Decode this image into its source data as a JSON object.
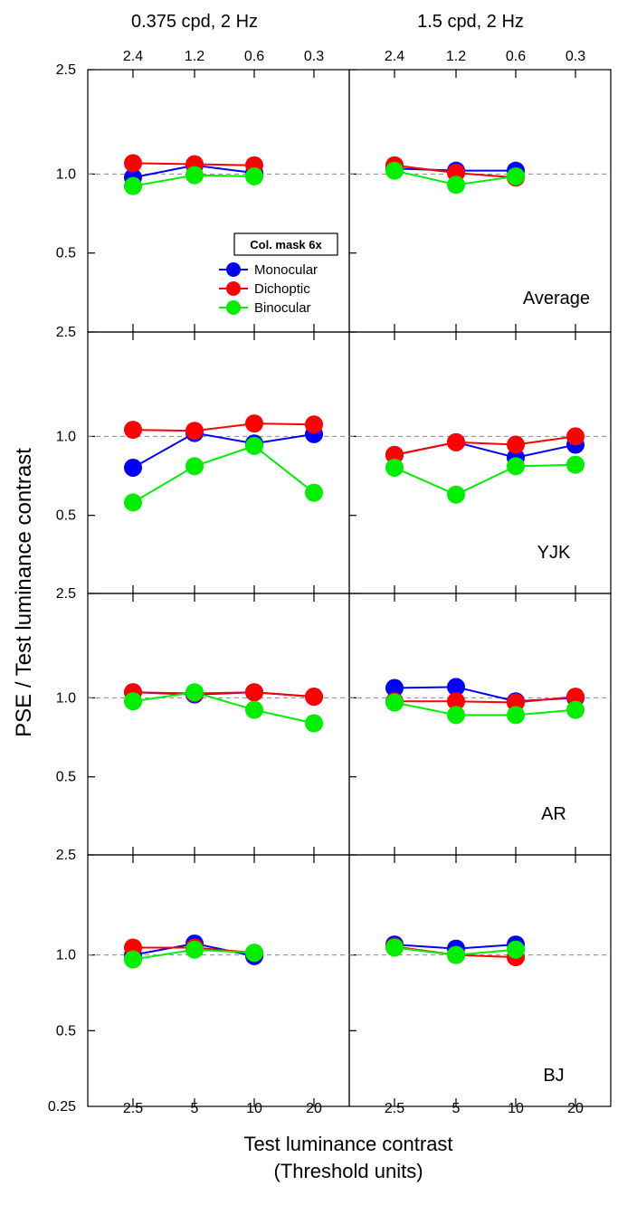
{
  "figure": {
    "column_titles": [
      "0.375 cpd, 2 Hz",
      "1.5 cpd, 2 Hz"
    ],
    "top_tick_labels": [
      "2.4",
      "1.2",
      "0.6",
      "0.3"
    ],
    "bottom_tick_labels": [
      "2.5",
      "5",
      "10",
      "20"
    ],
    "y_tick_labels": [
      "2.5",
      "1.0",
      "0.5",
      "0.25"
    ],
    "ylabel": "PSE / Test luminance contrast",
    "xlabel_line1": "Test luminance contrast",
    "xlabel_line2": "(Threshold units)",
    "legend_title": "Col. mask 6x",
    "row_labels": [
      "Average",
      "YJK",
      "AR",
      "BJ"
    ]
  },
  "colors": {
    "Monocular": "#0000ff",
    "Dichoptic": "#ff0000",
    "Binocular": "#00ee00",
    "reference": "#888888"
  },
  "chart_data": {
    "type": "line",
    "y_scale": "log",
    "ylim": [
      0.25,
      2.5
    ],
    "reference_line_y": 1.0,
    "x": [
      2.5,
      5,
      10,
      20
    ],
    "x_top": [
      2.4,
      1.2,
      0.6,
      0.3
    ],
    "legend": {
      "entries": [
        "Monocular",
        "Dichoptic",
        "Binocular"
      ],
      "placement": "center of top-left panel"
    },
    "panels": [
      {
        "row": "Average",
        "column": "0.375 cpd, 2 Hz",
        "series": [
          {
            "name": "Monocular",
            "values": [
              0.97,
              1.08,
              1.01,
              null
            ]
          },
          {
            "name": "Dichoptic",
            "values": [
              1.1,
              1.09,
              1.08,
              null
            ]
          },
          {
            "name": "Binocular",
            "values": [
              0.9,
              0.99,
              0.98,
              null
            ]
          }
        ]
      },
      {
        "row": "Average",
        "column": "1.5 cpd, 2 Hz",
        "series": [
          {
            "name": "Monocular",
            "values": [
              1.05,
              1.03,
              1.03,
              null
            ]
          },
          {
            "name": "Dichoptic",
            "values": [
              1.08,
              1.01,
              0.97,
              null
            ]
          },
          {
            "name": "Binocular",
            "values": [
              1.03,
              0.91,
              0.98,
              null
            ]
          }
        ]
      },
      {
        "row": "YJK",
        "column": "0.375 cpd, 2 Hz",
        "series": [
          {
            "name": "Monocular",
            "values": [
              0.76,
              1.03,
              0.94,
              1.02
            ]
          },
          {
            "name": "Dichoptic",
            "values": [
              1.06,
              1.05,
              1.12,
              1.11
            ]
          },
          {
            "name": "Binocular",
            "values": [
              0.56,
              0.77,
              0.92,
              0.61
            ]
          }
        ]
      },
      {
        "row": "YJK",
        "column": "1.5 cpd, 2 Hz",
        "series": [
          {
            "name": "Monocular",
            "values": [
              0.85,
              0.95,
              0.83,
              0.93
            ]
          },
          {
            "name": "Dichoptic",
            "values": [
              0.85,
              0.95,
              0.93,
              1.0
            ]
          },
          {
            "name": "Binocular",
            "values": [
              0.76,
              0.6,
              0.77,
              0.78
            ]
          }
        ]
      },
      {
        "row": "AR",
        "column": "0.375 cpd, 2 Hz",
        "series": [
          {
            "name": "Monocular",
            "values": [
              1.05,
              1.03,
              1.05,
              1.01
            ]
          },
          {
            "name": "Dichoptic",
            "values": [
              1.05,
              1.04,
              1.05,
              1.01
            ]
          },
          {
            "name": "Binocular",
            "values": [
              0.97,
              1.05,
              0.9,
              0.8
            ]
          }
        ]
      },
      {
        "row": "AR",
        "column": "1.5 cpd, 2 Hz",
        "series": [
          {
            "name": "Monocular",
            "values": [
              1.09,
              1.1,
              0.97,
              1.0
            ]
          },
          {
            "name": "Dichoptic",
            "values": [
              0.97,
              0.97,
              0.96,
              1.01
            ]
          },
          {
            "name": "Binocular",
            "values": [
              0.96,
              0.86,
              0.86,
              0.9
            ]
          }
        ]
      },
      {
        "row": "BJ",
        "column": "0.375 cpd, 2 Hz",
        "series": [
          {
            "name": "Monocular",
            "values": [
              1.0,
              1.11,
              0.99,
              null
            ]
          },
          {
            "name": "Dichoptic",
            "values": [
              1.07,
              1.07,
              1.02,
              null
            ]
          },
          {
            "name": "Binocular",
            "values": [
              0.96,
              1.05,
              1.02,
              null
            ]
          }
        ]
      },
      {
        "row": "BJ",
        "column": "1.5 cpd, 2 Hz",
        "series": [
          {
            "name": "Monocular",
            "values": [
              1.1,
              1.06,
              1.1,
              null
            ]
          },
          {
            "name": "Dichoptic",
            "values": [
              1.08,
              1.0,
              0.98,
              null
            ]
          },
          {
            "name": "Binocular",
            "values": [
              1.07,
              1.0,
              1.05,
              null
            ]
          }
        ]
      }
    ]
  }
}
